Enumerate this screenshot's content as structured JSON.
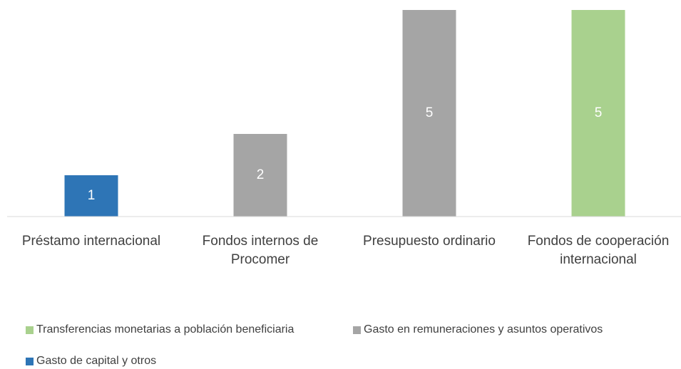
{
  "chart_data": {
    "type": "bar",
    "categories": [
      "Préstamo internacional",
      "Fondos internos de Procomer",
      "Presupuesto ordinario",
      "Fondos de cooperación internacional"
    ],
    "series": [
      {
        "name": "Transferencias monetarias a población beneficiaria",
        "color": "#a9d18e",
        "values": [
          null,
          null,
          null,
          5
        ]
      },
      {
        "name": "Gasto en remuneraciones y asuntos operativos",
        "color": "#a5a5a5",
        "values": [
          null,
          2,
          5,
          null
        ]
      },
      {
        "name": "Gasto de capital y otros",
        "color": "#2e75b6",
        "values": [
          1,
          null,
          null,
          null
        ]
      }
    ],
    "ylim": [
      0,
      5
    ]
  }
}
